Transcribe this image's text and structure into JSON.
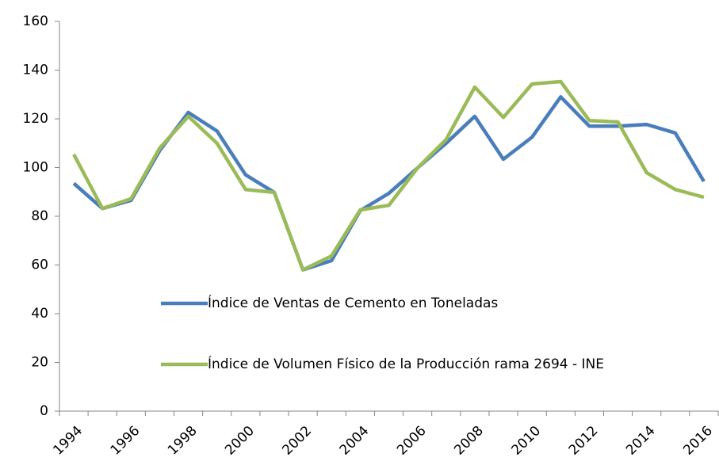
{
  "chart_data": {
    "type": "line",
    "categories": [
      "1994",
      null,
      "1996",
      null,
      "1998",
      null,
      "2000",
      null,
      "2002",
      null,
      "2004",
      null,
      "2006",
      null,
      "2008",
      null,
      "2010",
      null,
      "2012",
      null,
      "2014",
      null,
      "2016"
    ],
    "series": [
      {
        "name": "Índice de Ventas de Cemento en Toneladas",
        "color": "#4a7ebb",
        "values": [
          93.5,
          83.2,
          86.5,
          107,
          122.6,
          115,
          97,
          89.8,
          58,
          61.8,
          82.3,
          89.4,
          99.8,
          110,
          121,
          103.4,
          112.5,
          129,
          117,
          117,
          117.7,
          114.2,
          94.3
        ]
      },
      {
        "name": "Índice de Volumen Físico de la Producción rama 2694 - INE",
        "color": "#9bbb59",
        "values": [
          105.4,
          83.2,
          87.2,
          108,
          121,
          110,
          91,
          89.8,
          58,
          63.7,
          82.6,
          84.5,
          99.8,
          111.5,
          133,
          120.6,
          134.3,
          135.3,
          119.3,
          118.7,
          97.9,
          91,
          87.8
        ]
      }
    ],
    "ylim": [
      0,
      160
    ],
    "yticks": [
      0,
      20,
      40,
      60,
      80,
      100,
      120,
      140,
      160
    ],
    "grid": false
  }
}
